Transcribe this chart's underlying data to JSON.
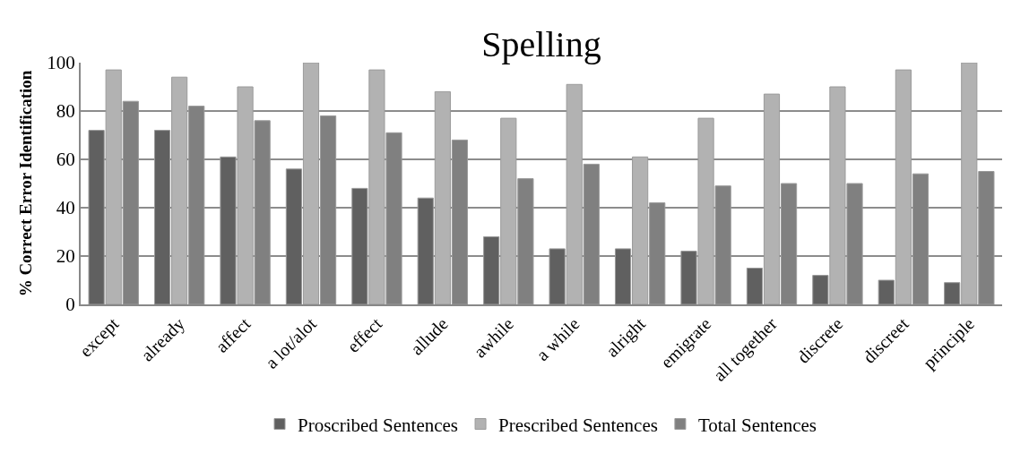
{
  "chart_data": {
    "type": "bar",
    "title": "Spelling",
    "ylabel": "% Correct Error Identification",
    "categories": [
      "except",
      "already",
      "affect",
      "a lot/alot",
      "effect",
      "allude",
      "awhile",
      "a while",
      "alright",
      "emigrate",
      "all together",
      "discrete",
      "discreet",
      "principle"
    ],
    "series": [
      {
        "name": "Proscribed Sentences",
        "color": "#606060",
        "values": [
          72,
          72,
          61,
          56,
          48,
          44,
          28,
          23,
          23,
          22,
          15,
          12,
          10,
          9
        ]
      },
      {
        "name": "Prescribed Sentences",
        "color": "#b2b2b2",
        "values": [
          97,
          94,
          90,
          100,
          97,
          88,
          77,
          91,
          61,
          77,
          87,
          90,
          97,
          100
        ]
      },
      {
        "name": "Total Sentences",
        "color": "#808080",
        "values": [
          84,
          82,
          76,
          78,
          71,
          68,
          52,
          58,
          42,
          49,
          50,
          50,
          54,
          55
        ]
      }
    ],
    "ylim": [
      0,
      100
    ],
    "yticks": [
      0,
      20,
      40,
      60,
      80,
      100
    ],
    "grid": "y",
    "legend": "bottom"
  }
}
